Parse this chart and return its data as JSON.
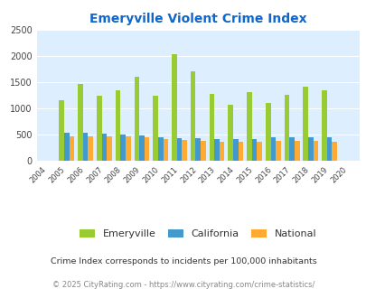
{
  "title": "Emeryville Violent Crime Index",
  "years": [
    2004,
    2005,
    2006,
    2007,
    2008,
    2009,
    2010,
    2011,
    2012,
    2013,
    2014,
    2015,
    2016,
    2017,
    2018,
    2019,
    2020
  ],
  "emeryville": [
    0,
    1160,
    1460,
    1240,
    1350,
    1600,
    1250,
    2040,
    1700,
    1270,
    1070,
    1310,
    1100,
    1260,
    1420,
    1350,
    0
  ],
  "california": [
    0,
    535,
    535,
    515,
    505,
    490,
    445,
    440,
    435,
    415,
    415,
    425,
    445,
    450,
    455,
    445,
    0
  ],
  "national": [
    0,
    475,
    475,
    470,
    465,
    445,
    420,
    395,
    390,
    370,
    365,
    370,
    385,
    390,
    375,
    370,
    0
  ],
  "emeryville_color": "#99cc33",
  "california_color": "#4499cc",
  "national_color": "#ffaa33",
  "bg_color": "#ddeeff",
  "ylim": [
    0,
    2500
  ],
  "yticks": [
    0,
    500,
    1000,
    1500,
    2000,
    2500
  ],
  "subtitle": "Crime Index corresponds to incidents per 100,000 inhabitants",
  "footer": "© 2025 CityRating.com - https://www.cityrating.com/crime-statistics/",
  "title_color": "#1166cc",
  "subtitle_color": "#333333",
  "footer_color": "#888888",
  "bar_width": 0.27
}
